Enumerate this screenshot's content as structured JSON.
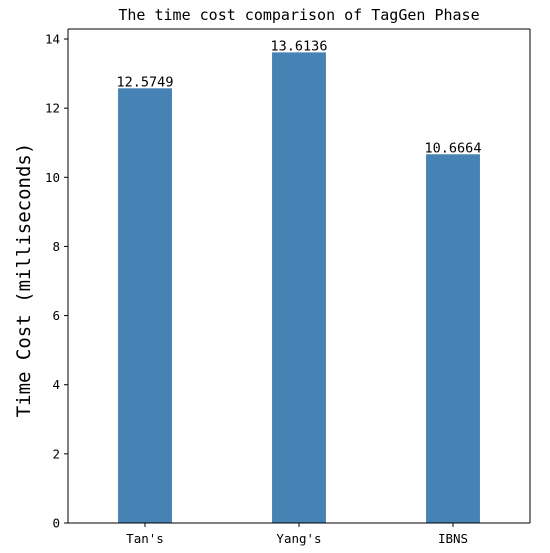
{
  "chart_data": {
    "type": "bar",
    "title": "The time cost comparison of TagGen Phase",
    "xlabel": "",
    "ylabel": "Time Cost (milliseconds)",
    "categories": [
      "Tan's",
      "Yang's",
      "IBNS"
    ],
    "values": [
      12.5749,
      13.6136,
      10.6664
    ],
    "data_labels": [
      "12.5749",
      "13.6136",
      "10.6664"
    ],
    "ylim": [
      0,
      14.29
    ],
    "yticks": [
      0,
      2,
      4,
      6,
      8,
      10,
      12,
      14
    ],
    "ytick_labels": [
      "0",
      "2",
      "4",
      "6",
      "8",
      "10",
      "12",
      "14"
    ],
    "grid": false,
    "legend": "none",
    "colors": {
      "bar": "#4682b4",
      "axes": "#000000",
      "background": "#ffffff"
    }
  }
}
